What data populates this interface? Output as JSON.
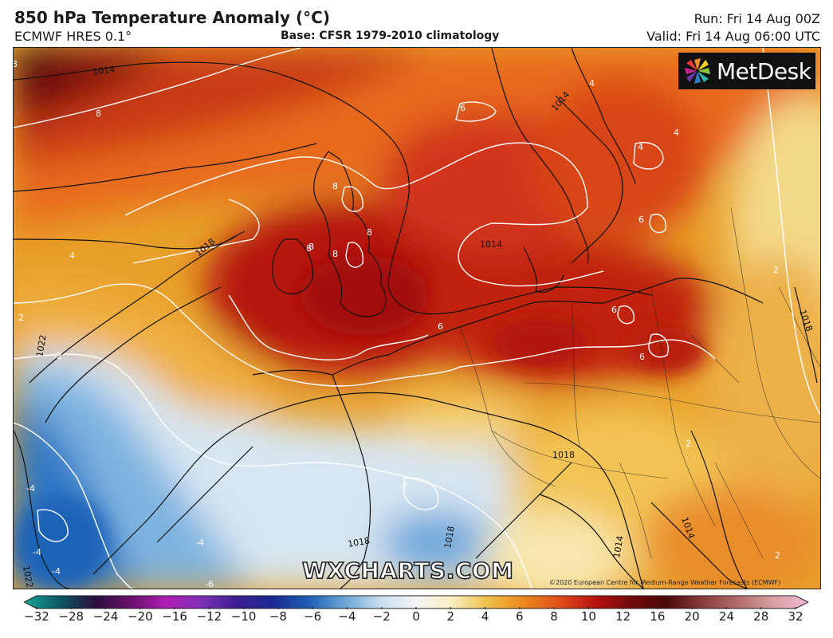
{
  "header": {
    "title": "850 hPa Temperature Anomaly (°C)",
    "model": "ECMWF HRES 0.1°",
    "base": "Base: CFSR 1979-2010 climatology",
    "run": "Run: Fri 14 Aug 00Z",
    "valid": "Valid: Fri 14 Aug 06:00 UTC"
  },
  "logo": {
    "text": "MetDesk",
    "icon": "metdesk-pinwheel-icon"
  },
  "watermark": "WXCHARTS.COM",
  "copyright": "©2020 European Centre for Medium-Range Weather Forecasts (ECMWF)",
  "map": {
    "pressure_labels": [
      "1014",
      "1018",
      "1014",
      "1014",
      "1018",
      "1022",
      "1018",
      "1018",
      "1014",
      "1014",
      "1022",
      "1018"
    ],
    "anomaly_labels": [
      "8",
      "8",
      "6",
      "8",
      "8",
      "8",
      "8",
      "6",
      "6",
      "6",
      "6",
      "4",
      "4",
      "4",
      "4",
      "2",
      "2",
      "-2",
      "-2",
      "-4",
      "-4",
      "-4",
      "-4",
      "-6",
      "2",
      "3",
      "2"
    ]
  },
  "colorbar": {
    "ticks": [
      "−32",
      "−28",
      "−24",
      "−20",
      "−16",
      "−12",
      "−10",
      "−8",
      "−6",
      "−4",
      "−2",
      "0",
      "2",
      "4",
      "6",
      "8",
      "10",
      "12",
      "16",
      "20",
      "24",
      "28",
      "32"
    ],
    "colors": [
      "#1aa69a",
      "#0b5a63",
      "#2a0f3e",
      "#6b0f6e",
      "#b01eb5",
      "#7d2fb8",
      "#3a1e90",
      "#1c2a95",
      "#1f5fb5",
      "#6aa6d6",
      "#c9dff0",
      "#f4f4f4",
      "#f7eec0",
      "#f2c04a",
      "#eb8a1e",
      "#e0501a",
      "#b8140f",
      "#740b0b",
      "#4a0707",
      "#8a3a3a",
      "#b06a6a",
      "#d8a0a0",
      "#f0b8d8"
    ]
  }
}
